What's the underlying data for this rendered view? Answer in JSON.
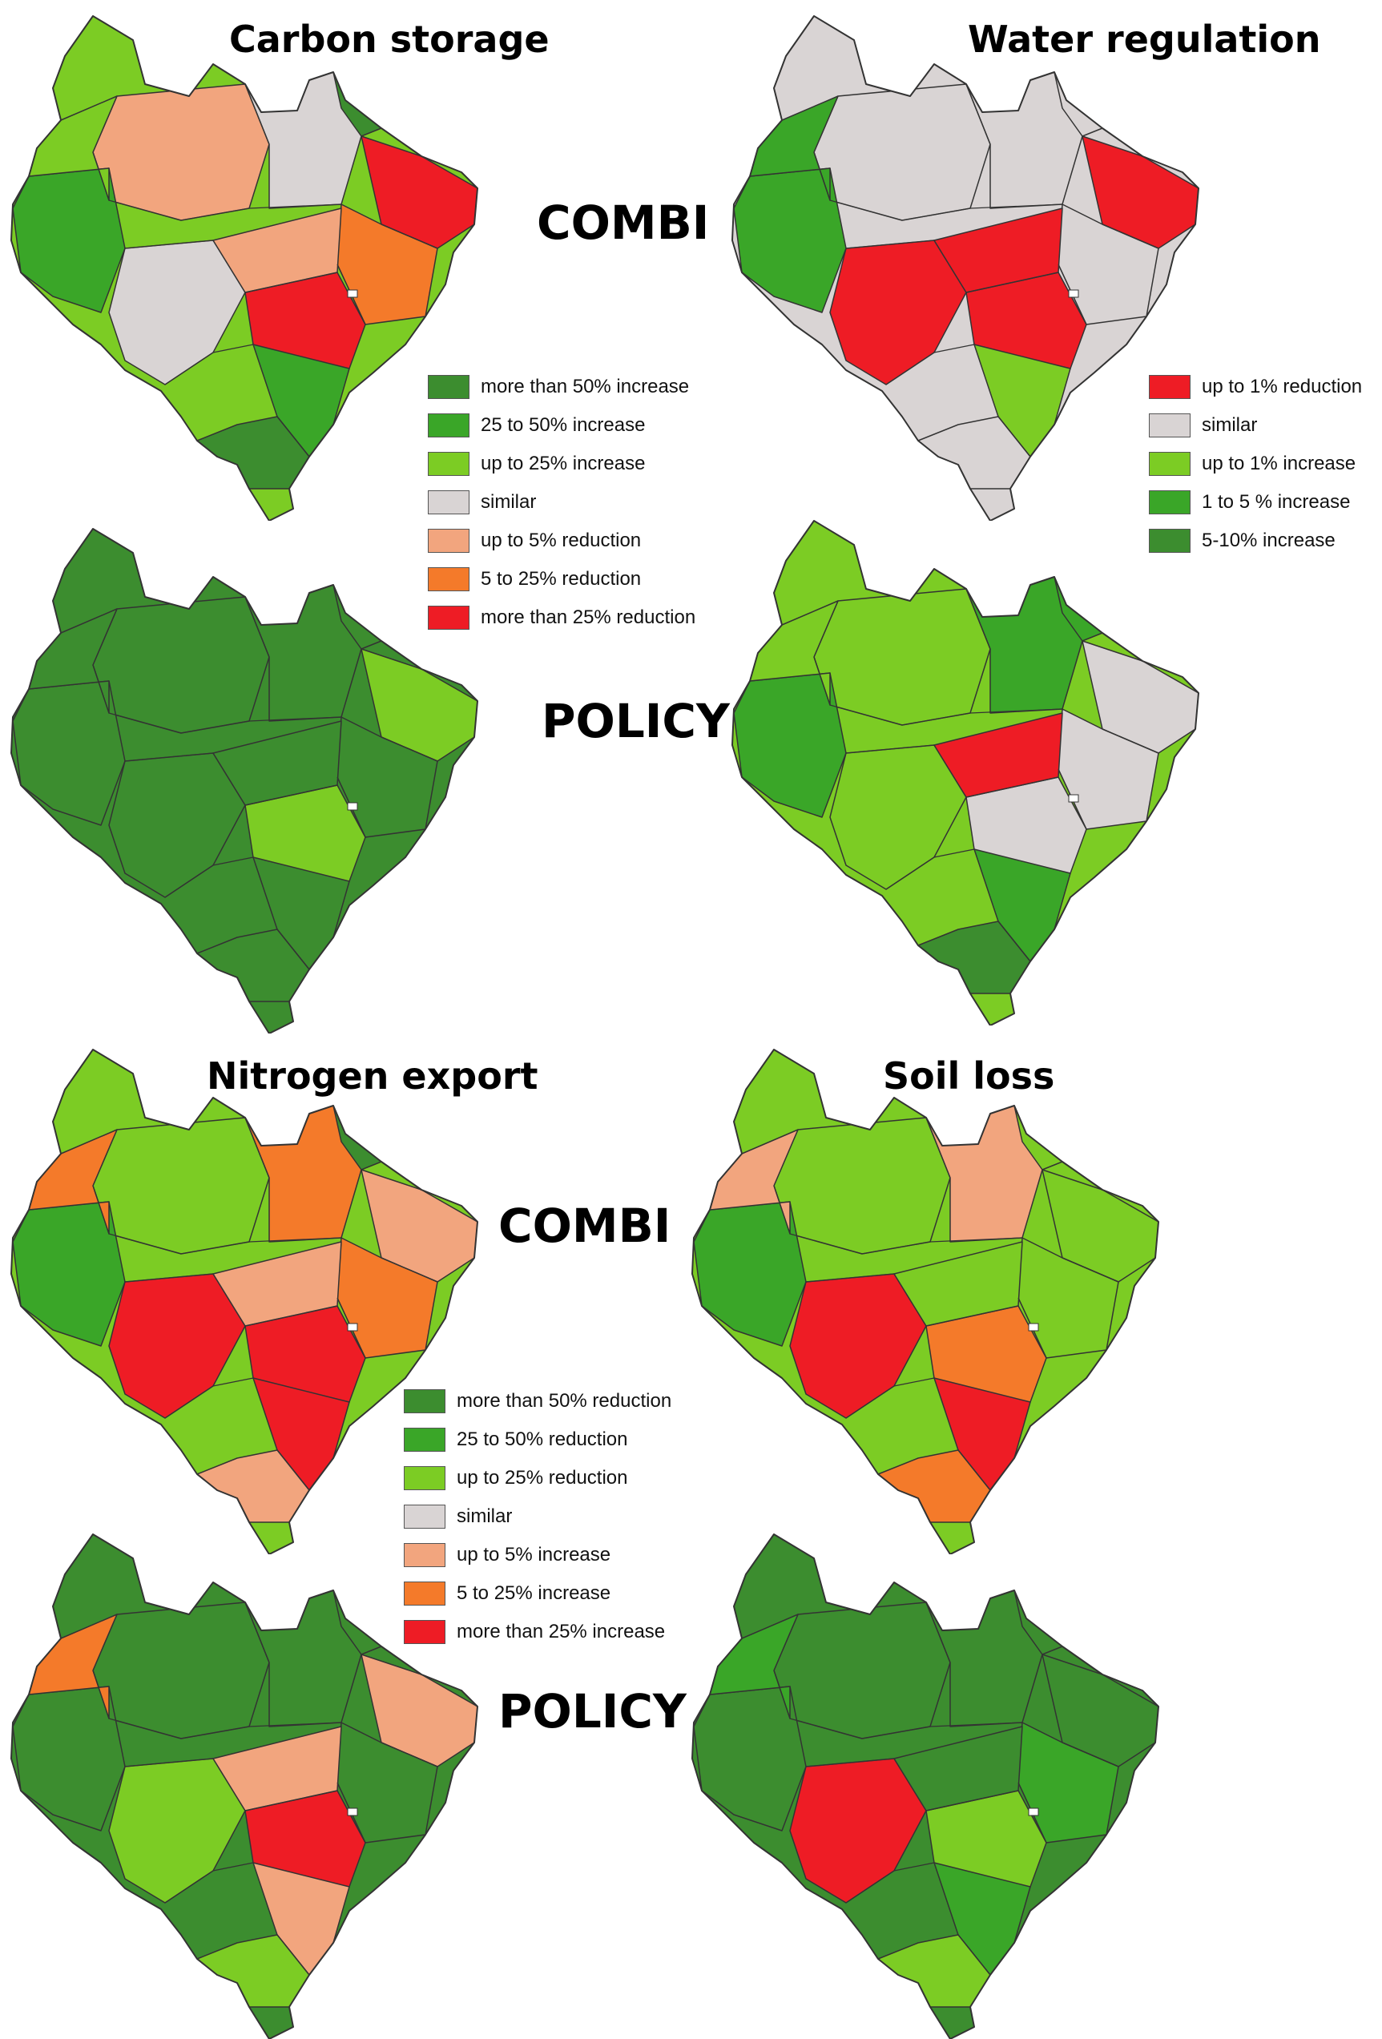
{
  "titles": {
    "carbon": "Carbon storage",
    "water": "Water regulation",
    "nitrogen": "Nitrogen export",
    "soil": "Soil loss"
  },
  "scenarios": {
    "combi": "COMBI",
    "policy": "POLICY"
  },
  "colors": {
    "dark_green": "#3c8d2f",
    "mid_green": "#3aa628",
    "light_green": "#7ccc24",
    "grey": "#d9d4d4",
    "salmon": "#f2a57e",
    "orange": "#f47a2a",
    "red": "#ee1c25",
    "border": "#333333"
  },
  "legend_carbon": [
    {
      "label": "more than 50% increase",
      "color": "#3c8d2f"
    },
    {
      "label": "25 to 50% increase",
      "color": "#3aa628"
    },
    {
      "label": "up to 25% increase",
      "color": "#7ccc24"
    },
    {
      "label": "similar",
      "color": "#d9d4d4"
    },
    {
      "label": "up to 5% reduction",
      "color": "#f2a57e"
    },
    {
      "label": "5 to 25% reduction",
      "color": "#f47a2a"
    },
    {
      "label": "more than 25% reduction",
      "color": "#ee1c25"
    }
  ],
  "legend_water": [
    {
      "label": "up to 1% reduction",
      "color": "#ee1c25"
    },
    {
      "label": "similar",
      "color": "#d9d4d4"
    },
    {
      "label": "up to 1% increase",
      "color": "#7ccc24"
    },
    {
      "label": "1 to 5 % increase",
      "color": "#3aa628"
    },
    {
      "label": "5-10%  increase",
      "color": "#3c8d2f"
    }
  ],
  "legend_nitrogen": [
    {
      "label": "more than 50% reduction",
      "color": "#3c8d2f"
    },
    {
      "label": "25 to 50% reduction",
      "color": "#3aa628"
    },
    {
      "label": "up to 25% reduction",
      "color": "#7ccc24"
    },
    {
      "label": "similar",
      "color": "#d9d4d4"
    },
    {
      "label": "up to 5% increase",
      "color": "#f2a57e"
    },
    {
      "label": "5 to 25% increase",
      "color": "#f47a2a"
    },
    {
      "label": "more than 25% increase",
      "color": "#ee1c25"
    }
  ],
  "maps": [
    {
      "name": "carbon-combi-map",
      "base": "#7ccc24",
      "regions": [
        "#f2a57e",
        "#d9d4d4",
        "#3aa628",
        "#ee1c25",
        "#f47a2a",
        "#3c8d2f",
        "#d9d4d4",
        "#ee1c25",
        "#3aa628",
        "#f2a57e",
        "#3c8d2f",
        "#7ccc24"
      ]
    },
    {
      "name": "carbon-policy-map",
      "base": "#3c8d2f",
      "regions": [
        "#3c8d2f",
        "#3c8d2f",
        "#3c8d2f",
        "#7ccc24",
        "#3c8d2f",
        "#3c8d2f",
        "#3c8d2f",
        "#7ccc24",
        "#3c8d2f",
        "#3c8d2f",
        "#3c8d2f",
        "#3c8d2f"
      ]
    },
    {
      "name": "water-combi-map",
      "base": "#d9d4d4",
      "regions": [
        "#d9d4d4",
        "#d9d4d4",
        "#3aa628",
        "#ee1c25",
        "#d9d4d4",
        "#d9d4d4",
        "#ee1c25",
        "#ee1c25",
        "#7ccc24",
        "#ee1c25",
        "#d9d4d4",
        "#3aa628"
      ]
    },
    {
      "name": "water-policy-map",
      "base": "#7ccc24",
      "regions": [
        "#7ccc24",
        "#3aa628",
        "#3aa628",
        "#d9d4d4",
        "#d9d4d4",
        "#3aa628",
        "#7ccc24",
        "#d9d4d4",
        "#3aa628",
        "#ee1c25",
        "#3c8d2f",
        "#7ccc24"
      ]
    },
    {
      "name": "nitrogen-combi-map",
      "base": "#7ccc24",
      "regions": [
        "#7ccc24",
        "#f47a2a",
        "#3aa628",
        "#f2a57e",
        "#f47a2a",
        "#3c8d2f",
        "#ee1c25",
        "#ee1c25",
        "#ee1c25",
        "#f2a57e",
        "#f2a57e",
        "#f47a2a"
      ]
    },
    {
      "name": "nitrogen-policy-map",
      "base": "#3c8d2f",
      "regions": [
        "#3c8d2f",
        "#3c8d2f",
        "#3c8d2f",
        "#f2a57e",
        "#3c8d2f",
        "#3c8d2f",
        "#7ccc24",
        "#ee1c25",
        "#f2a57e",
        "#f2a57e",
        "#7ccc24",
        "#f47a2a"
      ]
    },
    {
      "name": "soil-combi-map",
      "base": "#7ccc24",
      "regions": [
        "#7ccc24",
        "#f2a57e",
        "#3aa628",
        "#7ccc24",
        "#7ccc24",
        "#7ccc24",
        "#ee1c25",
        "#f47a2a",
        "#ee1c25",
        "#7ccc24",
        "#f47a2a",
        "#f2a57e"
      ]
    },
    {
      "name": "soil-policy-map",
      "base": "#3c8d2f",
      "regions": [
        "#3c8d2f",
        "#3c8d2f",
        "#3c8d2f",
        "#3c8d2f",
        "#3aa628",
        "#3c8d2f",
        "#ee1c25",
        "#7ccc24",
        "#3aa628",
        "#3c8d2f",
        "#7ccc24",
        "#3aa628"
      ]
    }
  ]
}
